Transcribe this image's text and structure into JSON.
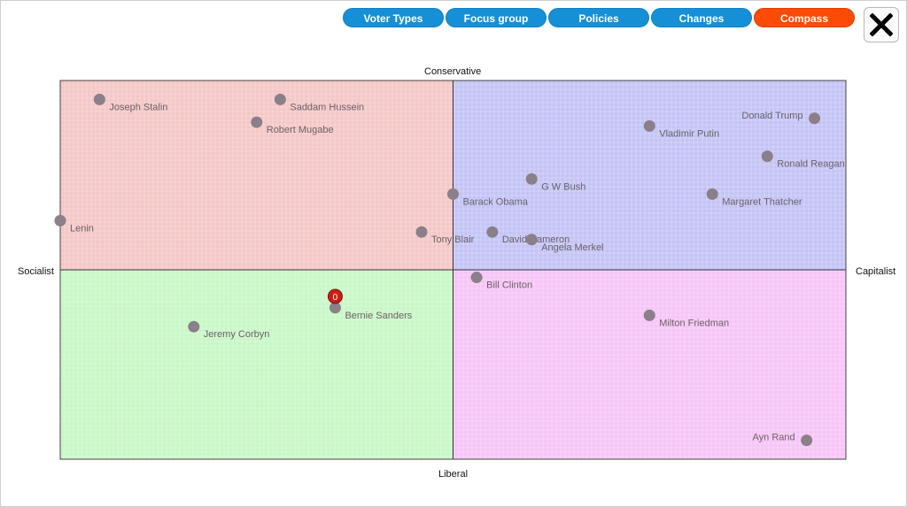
{
  "nav": {
    "tabs": [
      {
        "label": "Voter Types",
        "active": false
      },
      {
        "label": "Focus group",
        "active": false
      },
      {
        "label": "Policies",
        "active": false
      },
      {
        "label": "Changes",
        "active": false
      },
      {
        "label": "Compass",
        "active": true
      }
    ],
    "close_icon": "close-x-icon"
  },
  "colors": {
    "tab": "#1590d6",
    "tab_active": "#fc4a07",
    "q_conservative_socialist": "#f5c6c6",
    "q_conservative_capitalist": "#c3c3f6",
    "q_liberal_socialist": "#c8f7c6",
    "q_liberal_capitalist": "#f6c5f6",
    "marker": "#8b7f89",
    "player": "#cc1f14"
  },
  "chart_data": {
    "type": "scatter",
    "axes": {
      "top": "Conservative",
      "bottom": "Liberal",
      "left": "Socialist",
      "right": "Capitalist"
    },
    "xlim": [
      -1,
      1
    ],
    "ylim": [
      -1,
      1
    ],
    "grid": true,
    "points": [
      {
        "label": "Joseph Stalin",
        "x": -0.9,
        "y": 0.9
      },
      {
        "label": "Saddam Hussein",
        "x": -0.44,
        "y": 0.9
      },
      {
        "label": "Robert Mugabe",
        "x": -0.5,
        "y": 0.78
      },
      {
        "label": "Lenin",
        "x": -1.0,
        "y": 0.26
      },
      {
        "label": "Tony Blair",
        "x": -0.08,
        "y": 0.2
      },
      {
        "label": "Barack Obama",
        "x": 0.0,
        "y": 0.4
      },
      {
        "label": "G W Bush",
        "x": 0.2,
        "y": 0.48
      },
      {
        "label": "David Cameron",
        "x": 0.1,
        "y": 0.2
      },
      {
        "label": "Angela Merkel",
        "x": 0.2,
        "y": 0.16
      },
      {
        "label": "Donald Trump",
        "x": 0.92,
        "y": 0.8
      },
      {
        "label": "Vladimir Putin",
        "x": 0.5,
        "y": 0.76
      },
      {
        "label": "Ronald Reagan",
        "x": 0.8,
        "y": 0.6
      },
      {
        "label": "Margaret Thatcher",
        "x": 0.66,
        "y": 0.4
      },
      {
        "label": "Bill Clinton",
        "x": 0.06,
        "y": -0.04
      },
      {
        "label": "Milton Friedman",
        "x": 0.5,
        "y": -0.24
      },
      {
        "label": "Ayn Rand",
        "x": 0.9,
        "y": -0.9
      },
      {
        "label": "Bernie Sanders",
        "x": -0.3,
        "y": -0.2
      },
      {
        "label": "Jeremy Corbyn",
        "x": -0.66,
        "y": -0.3
      }
    ],
    "player": {
      "label": "0",
      "x": -0.3,
      "y": -0.14
    }
  }
}
